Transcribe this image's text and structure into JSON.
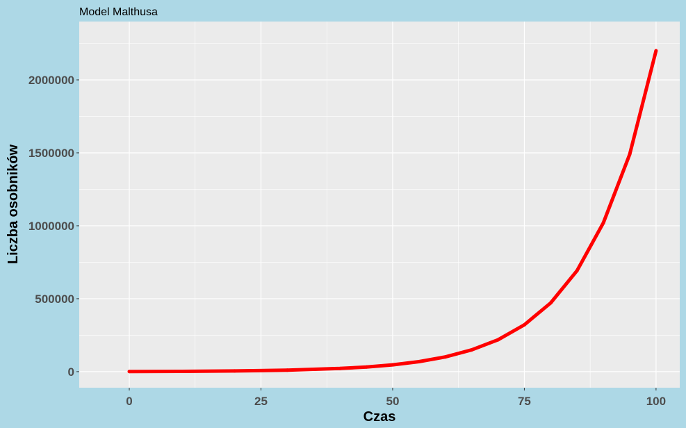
{
  "chart_data": {
    "type": "line",
    "title": "Model Malthusa",
    "xlabel": "Czas",
    "ylabel": "Liczba osobników",
    "xlim": [
      -9.5,
      104.5
    ],
    "ylim": [
      -110000,
      2400000
    ],
    "x_ticks": [
      0,
      25,
      50,
      75,
      100
    ],
    "y_ticks": [
      0,
      500000,
      1000000,
      1500000,
      2000000
    ],
    "grid": true,
    "legend": "none",
    "series": [
      {
        "color": "#ff0000",
        "x": [
          0,
          10,
          20,
          30,
          40,
          45,
          50,
          55,
          60,
          65,
          70,
          75,
          80,
          85,
          90,
          95,
          100
        ],
        "y": [
          1000,
          2160,
          4660,
          10000,
          21700,
          31900,
          46900,
          68800,
          101000,
          149000,
          218000,
          321000,
          471000,
          692000,
          1020000,
          1490000,
          2200000
        ]
      }
    ]
  },
  "colors": {
    "background": "#add8e6",
    "panel": "#ebebeb",
    "grid": "#ffffff",
    "line": "#ff0000"
  }
}
